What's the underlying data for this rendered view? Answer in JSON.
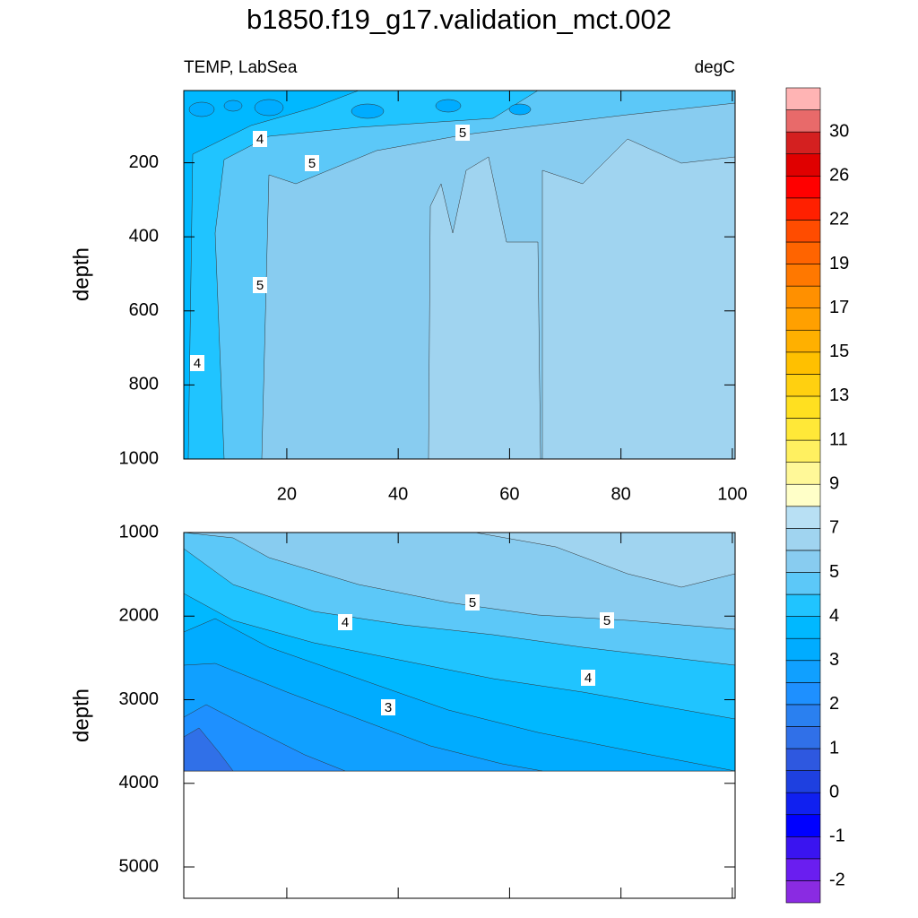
{
  "chart_data": {
    "type": "contour",
    "title": "b1850.f19_g17.validation_mct.002",
    "left_label": "TEMP, LabSea",
    "right_label": "degC",
    "panels": [
      {
        "ylabel": "depth",
        "xlim": [
          1.5,
          100.5
        ],
        "xticks": [
          20,
          40,
          60,
          80,
          100
        ],
        "ylim": [
          5,
          1000
        ],
        "yticks": [
          200,
          400,
          600,
          800,
          1000
        ],
        "contour_labels": [
          4,
          5,
          5,
          5,
          4
        ]
      },
      {
        "ylabel": "depth",
        "ylim": [
          1000,
          5375
        ],
        "yticks": [
          1000,
          2000,
          3000,
          4000,
          5000
        ],
        "contour_labels": [
          5,
          4,
          5,
          4,
          3
        ]
      }
    ],
    "colorbar": {
      "labels": [
        -2,
        -1,
        0,
        1,
        2,
        3,
        4,
        5,
        7,
        9,
        11,
        13,
        15,
        17,
        19,
        22,
        26,
        30
      ],
      "colors": [
        "#8a2be2",
        "#6a1ef0",
        "#3a14f0",
        "#0000ff",
        "#1020f0",
        "#1e40e0",
        "#2e58e0",
        "#3070e8",
        "#2a80f0",
        "#1e90ff",
        "#10a0ff",
        "#00acff",
        "#00b8ff",
        "#20c4ff",
        "#5cc8f8",
        "#88ccf0",
        "#a0d4f0",
        "#b8e0f4",
        "#ffffc8",
        "#fff898",
        "#fff060",
        "#ffe838",
        "#ffe020",
        "#ffd010",
        "#ffc000",
        "#ffb000",
        "#ffa000",
        "#ff9000",
        "#ff7800",
        "#ff6400",
        "#ff4c00",
        "#ff2000",
        "#ff0000",
        "#e00000",
        "#d42020",
        "#e86a6a",
        "#ffb4b4"
      ]
    }
  }
}
